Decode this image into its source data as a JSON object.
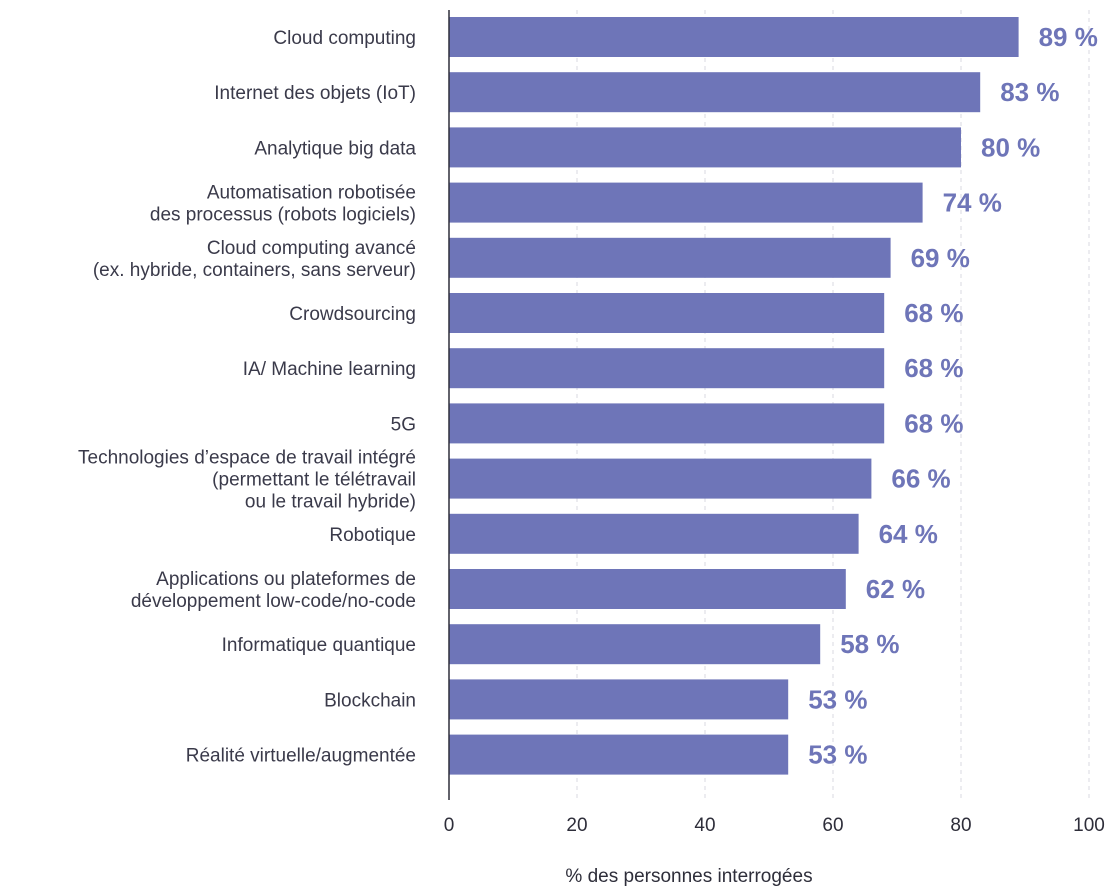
{
  "chart_data": {
    "type": "bar",
    "orientation": "horizontal",
    "categories": [
      [
        "Cloud computing"
      ],
      [
        "Internet des objets (IoT)"
      ],
      [
        "Analytique big data"
      ],
      [
        "Automatisation robotisée",
        "des processus (robots logiciels)"
      ],
      [
        "Cloud computing avancé",
        "(ex. hybride, containers, sans serveur)"
      ],
      [
        "Crowdsourcing"
      ],
      [
        "IA/ Machine learning"
      ],
      [
        "5G"
      ],
      [
        "Technologies d’espace de travail intégré",
        "(permettant le télétravail",
        "ou le travail hybride)"
      ],
      [
        "Robotique"
      ],
      [
        "Applications ou plateformes de",
        "développement low-code/no-code"
      ],
      [
        "Informatique quantique"
      ],
      [
        "Blockchain"
      ],
      [
        "Réalité virtuelle/augmentée"
      ]
    ],
    "values": [
      89,
      83,
      80,
      74,
      69,
      68,
      68,
      68,
      66,
      64,
      62,
      58,
      53,
      53
    ],
    "value_labels": [
      "89 %",
      "83 %",
      "80 %",
      "74 %",
      "69 %",
      "68 %",
      "68 %",
      "68 %",
      "66 %",
      "64 %",
      "62 %",
      "58 %",
      "53 %",
      "53 %"
    ],
    "xlabel": "% des personnes interrogées",
    "xlim": [
      0,
      100
    ],
    "xticks": [
      0,
      20,
      40,
      60,
      80,
      100
    ],
    "grid": "vertical dashed",
    "colors": {
      "bar": "#6e75b8",
      "value_label": "#6e75b8",
      "grid": "#d8d8e0",
      "axis": "#2e2e3a"
    }
  }
}
